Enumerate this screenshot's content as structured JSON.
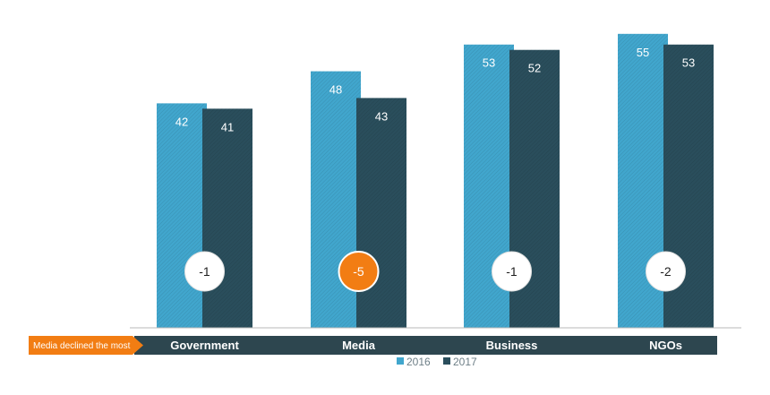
{
  "chart_data": {
    "type": "bar",
    "categories": [
      "Government",
      "Media",
      "Business",
      "NGOs"
    ],
    "series": [
      {
        "name": "2016",
        "values": [
          42,
          48,
          53,
          55
        ],
        "color": "#41a6cd"
      },
      {
        "name": "2017",
        "values": [
          41,
          43,
          52,
          53
        ],
        "color": "#2a4e5c"
      }
    ],
    "changes": [
      "-1",
      "-5",
      "-1",
      "-2"
    ],
    "highlight_index": 1,
    "highlight_color": "#f27d13",
    "callout": "Media declined the most",
    "category_band_color": "#2d464f",
    "ylim": [
      0,
      60
    ],
    "legend_position": "bottom-center",
    "grid": false
  }
}
